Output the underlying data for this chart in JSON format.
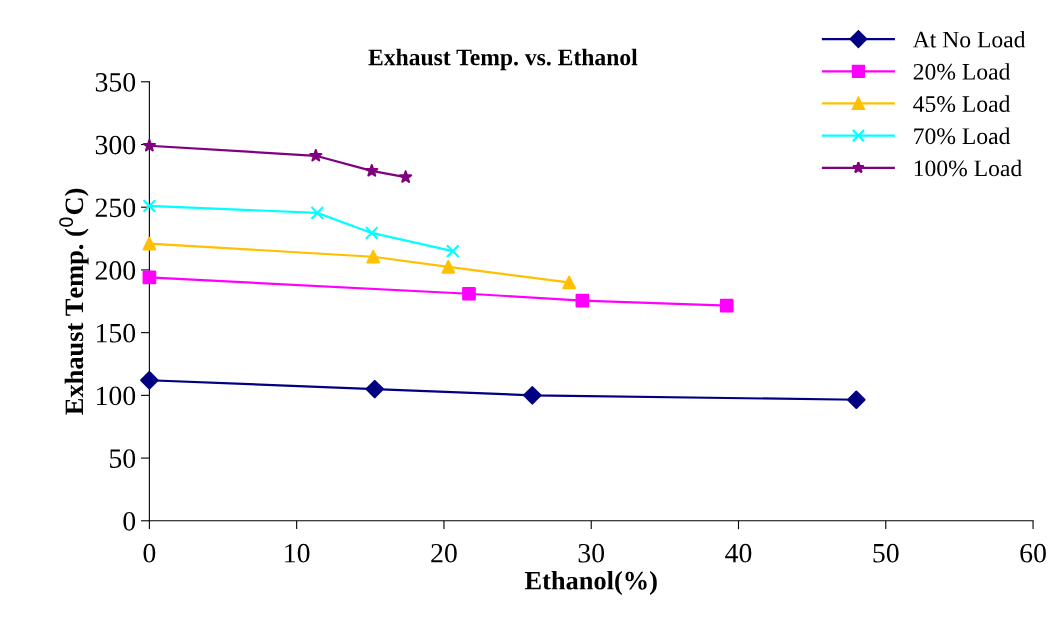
{
  "chart_data": {
    "type": "line",
    "title": "Exhaust Temp. vs. Ethanol",
    "xlabel": "Ethanol(%)",
    "ylabel": "Exhaust Temp. ($^{0}$C)",
    "xlim": [
      0,
      60
    ],
    "xticks": [
      0,
      10,
      20,
      30,
      40,
      50,
      60
    ],
    "ylim": [
      0,
      350
    ],
    "yticks": [
      0,
      50,
      100,
      150,
      200,
      250,
      300,
      350
    ],
    "grid": false,
    "legend": "top right",
    "line_style": "solid",
    "series": [
      {
        "name": "At No Load",
        "color": "#000080",
        "marker": "diamond",
        "x": [
          0,
          15.3,
          26,
          48
        ],
        "values": [
          112,
          105,
          100,
          96.5
        ]
      },
      {
        "name": "20% Load",
        "color": "#ff00ff",
        "marker": "square",
        "x": [
          0,
          21.7,
          29.4,
          39.2
        ],
        "values": [
          194,
          181,
          175.5,
          171.5
        ]
      },
      {
        "name": "45% Load",
        "color": "#ffc000",
        "marker": "triangle",
        "x": [
          0,
          15.2,
          20.3,
          28.5
        ],
        "values": [
          221,
          210.5,
          202.5,
          190
        ]
      },
      {
        "name": "70% Load",
        "color": "#00ffff",
        "marker": "cross",
        "x": [
          0,
          11.4,
          15.1,
          20.6
        ],
        "values": [
          251,
          245.5,
          229.5,
          215
        ]
      },
      {
        "name": "100% Load",
        "color": "#800080",
        "marker": "star",
        "x": [
          0,
          11.3,
          15.1,
          17.4
        ],
        "values": [
          299,
          291,
          279,
          274
        ]
      }
    ]
  }
}
